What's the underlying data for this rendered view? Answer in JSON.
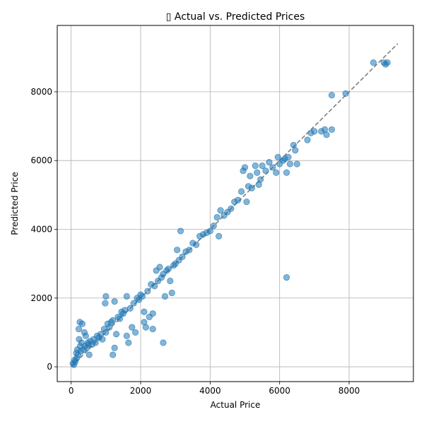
{
  "chart_data": {
    "type": "scatter",
    "title": "▯ Actual vs. Predicted Prices",
    "xlabel": "Actual Price",
    "ylabel": "Predicted Price",
    "xlim": [
      -400,
      9850
    ],
    "ylim": [
      -430,
      9930
    ],
    "xticks": [
      0,
      2000,
      4000,
      6000,
      8000
    ],
    "xtick_labels": [
      "0",
      "2000",
      "4000",
      "6000",
      "8000"
    ],
    "yticks": [
      0,
      2000,
      4000,
      6000,
      8000
    ],
    "ytick_labels": [
      "0",
      "2000",
      "4000",
      "6000",
      "8000"
    ],
    "grid": true,
    "marker_color": "#1f77b4",
    "marker_alpha": 0.55,
    "reference_line": {
      "style": "dashed",
      "color": "#808080",
      "x": [
        0,
        9400
      ],
      "y": [
        0,
        9400
      ]
    },
    "points": [
      [
        50,
        100
      ],
      [
        80,
        60
      ],
      [
        100,
        200
      ],
      [
        120,
        150
      ],
      [
        150,
        400
      ],
      [
        160,
        250
      ],
      [
        180,
        500
      ],
      [
        200,
        350
      ],
      [
        220,
        1100
      ],
      [
        230,
        800
      ],
      [
        250,
        1300
      ],
      [
        260,
        600
      ],
      [
        280,
        450
      ],
      [
        300,
        700
      ],
      [
        320,
        1250
      ],
      [
        350,
        500
      ],
      [
        380,
        1000
      ],
      [
        400,
        600
      ],
      [
        420,
        900
      ],
      [
        450,
        550
      ],
      [
        480,
        700
      ],
      [
        500,
        650
      ],
      [
        520,
        350
      ],
      [
        550,
        750
      ],
      [
        600,
        650
      ],
      [
        650,
        800
      ],
      [
        700,
        700
      ],
      [
        750,
        900
      ],
      [
        800,
        850
      ],
      [
        850,
        950
      ],
      [
        900,
        800
      ],
      [
        950,
        1100
      ],
      [
        980,
        1850
      ],
      [
        1000,
        2050
      ],
      [
        1000,
        1000
      ],
      [
        1050,
        1250
      ],
      [
        1100,
        1150
      ],
      [
        1150,
        1300
      ],
      [
        1200,
        1350
      ],
      [
        1200,
        350
      ],
      [
        1250,
        550
      ],
      [
        1250,
        1900
      ],
      [
        1300,
        950
      ],
      [
        1350,
        1450
      ],
      [
        1400,
        1400
      ],
      [
        1450,
        1600
      ],
      [
        1500,
        1550
      ],
      [
        1550,
        1650
      ],
      [
        1600,
        900
      ],
      [
        1600,
        2050
      ],
      [
        1650,
        700
      ],
      [
        1700,
        1700
      ],
      [
        1750,
        1150
      ],
      [
        1800,
        1850
      ],
      [
        1850,
        1000
      ],
      [
        1900,
        2000
      ],
      [
        1950,
        1950
      ],
      [
        2000,
        2100
      ],
      [
        2050,
        2050
      ],
      [
        2100,
        1300
      ],
      [
        2100,
        1600
      ],
      [
        2150,
        1150
      ],
      [
        2200,
        2200
      ],
      [
        2250,
        1450
      ],
      [
        2300,
        2400
      ],
      [
        2350,
        1100
      ],
      [
        2350,
        1550
      ],
      [
        2400,
        2350
      ],
      [
        2450,
        2800
      ],
      [
        2500,
        2500
      ],
      [
        2550,
        2900
      ],
      [
        2600,
        2600
      ],
      [
        2650,
        2700
      ],
      [
        2650,
        700
      ],
      [
        2700,
        2050
      ],
      [
        2750,
        2800
      ],
      [
        2800,
        2850
      ],
      [
        2850,
        2500
      ],
      [
        2900,
        2150
      ],
      [
        2950,
        2950
      ],
      [
        3000,
        3000
      ],
      [
        3050,
        3400
      ],
      [
        3100,
        3100
      ],
      [
        3150,
        3950
      ],
      [
        3200,
        3200
      ],
      [
        3300,
        3350
      ],
      [
        3400,
        3400
      ],
      [
        3500,
        3600
      ],
      [
        3600,
        3550
      ],
      [
        3700,
        3800
      ],
      [
        3800,
        3850
      ],
      [
        3900,
        3900
      ],
      [
        4000,
        3950
      ],
      [
        4100,
        4100
      ],
      [
        4200,
        4350
      ],
      [
        4250,
        3800
      ],
      [
        4300,
        4550
      ],
      [
        4400,
        4400
      ],
      [
        4500,
        4500
      ],
      [
        4600,
        4600
      ],
      [
        4700,
        4800
      ],
      [
        4800,
        4850
      ],
      [
        4900,
        5100
      ],
      [
        4950,
        5700
      ],
      [
        5000,
        5800
      ],
      [
        5050,
        4800
      ],
      [
        5100,
        5250
      ],
      [
        5150,
        5550
      ],
      [
        5200,
        5200
      ],
      [
        5300,
        5850
      ],
      [
        5350,
        5650
      ],
      [
        5400,
        5300
      ],
      [
        5450,
        5450
      ],
      [
        5500,
        5850
      ],
      [
        5600,
        5700
      ],
      [
        5700,
        5950
      ],
      [
        5800,
        5800
      ],
      [
        5900,
        5650
      ],
      [
        5950,
        6100
      ],
      [
        6000,
        5900
      ],
      [
        6100,
        6000
      ],
      [
        6150,
        6050
      ],
      [
        6200,
        2600
      ],
      [
        6200,
        5650
      ],
      [
        6250,
        6100
      ],
      [
        6300,
        5900
      ],
      [
        6400,
        6450
      ],
      [
        6450,
        6300
      ],
      [
        6500,
        5900
      ],
      [
        6800,
        6600
      ],
      [
        6900,
        6800
      ],
      [
        7000,
        6850
      ],
      [
        7200,
        6850
      ],
      [
        7300,
        6900
      ],
      [
        7350,
        6750
      ],
      [
        7500,
        7900
      ],
      [
        7500,
        6900
      ],
      [
        7900,
        7950
      ],
      [
        8700,
        8850
      ],
      [
        9000,
        8850
      ],
      [
        9050,
        8800
      ],
      [
        9100,
        8850
      ]
    ]
  }
}
